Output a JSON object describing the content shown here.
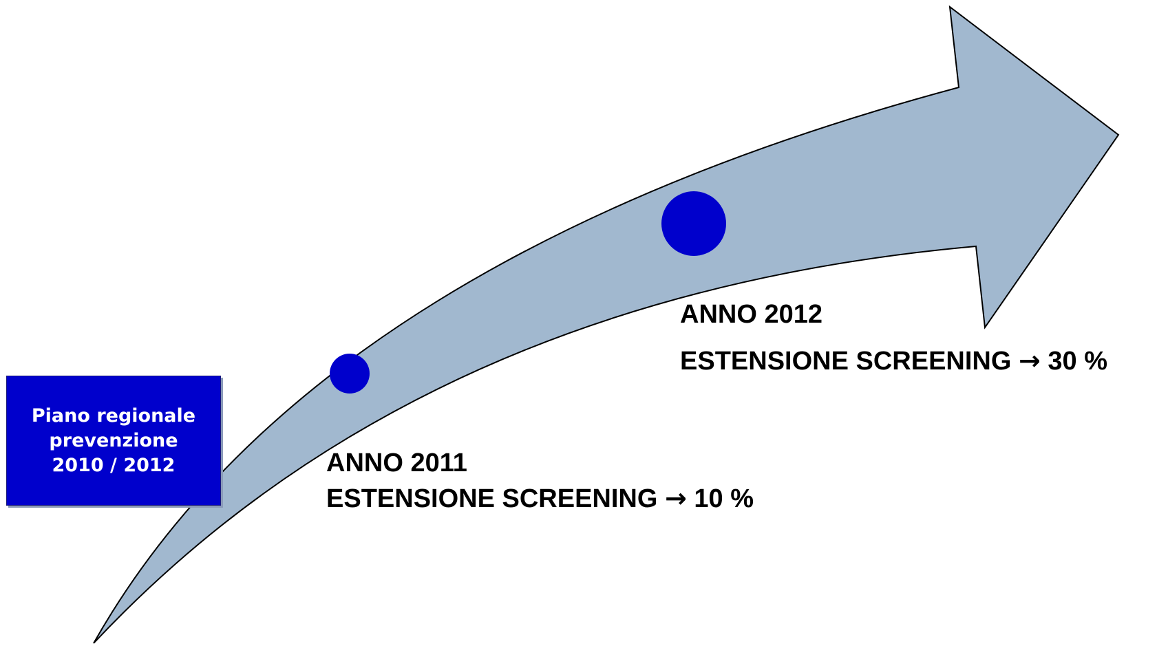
{
  "colors": {
    "arrow_fill": "#a1b8cf",
    "arrow_stroke": "#000000",
    "dot": "#0000cc",
    "box_fill": "#0000cc",
    "box_text": "#ffffff",
    "text": "#000000"
  },
  "plan_box": {
    "line1": "Piano regionale",
    "line2": "prevenzione",
    "line3": "2010 / 2012"
  },
  "milestones": [
    {
      "year_label": "ANNO 2011",
      "extension_label": "ESTENSIONE SCREENING",
      "arrow_symbol": "→",
      "value": "10 %"
    },
    {
      "year_label": "ANNO 2012",
      "extension_label": "ESTENSIONE SCREENING",
      "arrow_symbol": "→",
      "value": "30 %"
    }
  ]
}
